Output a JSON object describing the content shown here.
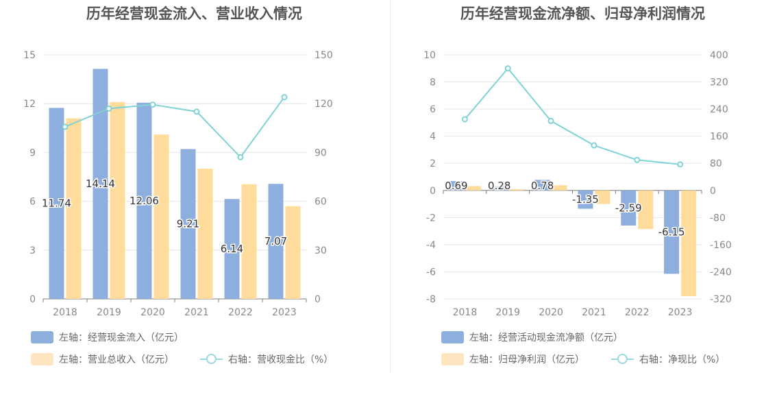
{
  "colors": {
    "bar_primary": "#8eaedd",
    "bar_secondary": "#ffdb9c",
    "line": "#7fd3d6",
    "grid": "#e3e6ef"
  },
  "left": {
    "title": "历年经营现金流入、营业收入情况",
    "legend": {
      "bar1": "左轴：经营现金流入（亿元）",
      "bar2": "左轴：营业总收入（亿元）",
      "line": "右轴：营收现金比（%）"
    }
  },
  "right": {
    "title": "历年经营现金流净额、归母净利润情况",
    "legend": {
      "bar1": "左轴：经营活动现金流净额（亿元）",
      "bar2": "左轴：归母净利润（亿元）",
      "line": "右轴：净现比（%）"
    }
  },
  "chart_data": [
    {
      "type": "bar",
      "title": "历年经营现金流入、营业收入情况",
      "categories": [
        "2018",
        "2019",
        "2020",
        "2021",
        "2022",
        "2023"
      ],
      "ylim_left": [
        0,
        15
      ],
      "yticks_left": [
        0,
        3,
        6,
        9,
        12,
        15
      ],
      "ylim_right": [
        0,
        150
      ],
      "yticks_right": [
        0,
        30,
        60,
        90,
        120,
        150
      ],
      "grid": true,
      "legend_position": "bottom",
      "series": [
        {
          "name": "左轴：经营现金流入（亿元）",
          "kind": "bar",
          "axis": "left",
          "values": [
            11.74,
            14.14,
            12.06,
            9.21,
            6.14,
            7.07
          ],
          "labels": [
            "11.74",
            "14.14",
            "12.06",
            "9.21",
            "6.14",
            "7.07"
          ]
        },
        {
          "name": "左轴：营业总收入（亿元）",
          "kind": "bar",
          "axis": "left",
          "values": [
            11.1,
            12.1,
            10.1,
            8.0,
            7.05,
            5.7
          ]
        },
        {
          "name": "右轴：营收现金比（%）",
          "kind": "line",
          "axis": "right",
          "values": [
            105.8,
            117.0,
            119.4,
            115.1,
            87.1,
            124.0
          ]
        }
      ]
    },
    {
      "type": "bar",
      "title": "历年经营现金流净额、归母净利润情况",
      "categories": [
        "2018",
        "2019",
        "2020",
        "2021",
        "2022",
        "2023"
      ],
      "ylim_left": [
        -8,
        10
      ],
      "yticks_left": [
        -8,
        -6,
        -4,
        -2,
        0,
        2,
        4,
        6,
        8,
        10
      ],
      "ylim_right": [
        -320,
        400
      ],
      "yticks_right": [
        -320,
        -240,
        -160,
        -80,
        0,
        80,
        160,
        240,
        320,
        400
      ],
      "grid": true,
      "legend_position": "bottom",
      "series": [
        {
          "name": "左轴：经营活动现金流净额（亿元）",
          "kind": "bar",
          "axis": "left",
          "values": [
            0.69,
            0.28,
            0.78,
            -1.35,
            -2.59,
            -6.15
          ],
          "labels": [
            "0.69",
            "0.28",
            "0.78",
            "-1.35",
            "-2.59",
            "-6.15"
          ]
        },
        {
          "name": "左轴：归母净利润（亿元）",
          "kind": "bar",
          "axis": "left",
          "values": [
            0.32,
            0.08,
            0.38,
            -1.0,
            -2.85,
            -7.8
          ]
        },
        {
          "name": "右轴：净现比（%）",
          "kind": "line",
          "axis": "right",
          "values": [
            210,
            360,
            205,
            133,
            90,
            77
          ]
        }
      ]
    }
  ]
}
